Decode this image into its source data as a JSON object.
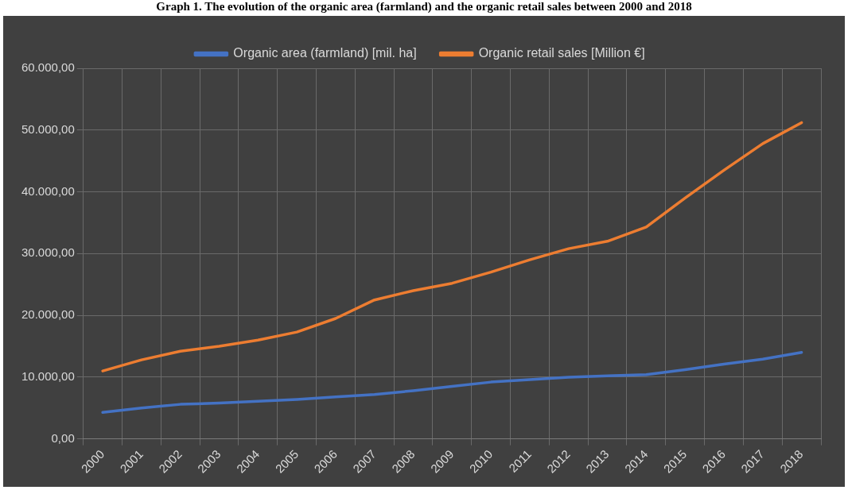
{
  "chart_data": {
    "type": "line",
    "title": "Graph 1. The evolution of the organic area (farmland) and the organic retail sales between 2000 and 2018",
    "categories": [
      "2000",
      "2001",
      "2002",
      "2003",
      "2004",
      "2005",
      "2006",
      "2007",
      "2008",
      "2009",
      "2010",
      "2011",
      "2012",
      "2013",
      "2014",
      "2015",
      "2016",
      "2017",
      "2018"
    ],
    "series": [
      {
        "name": "Organic area (farmland) [mil. ha]",
        "color": "#4472c4",
        "values": [
          4300,
          5000,
          5600,
          5800,
          6100,
          6400,
          6800,
          7200,
          7800,
          8500,
          9200,
          9600,
          10000,
          10200,
          10400,
          11200,
          12100,
          12900,
          14000
        ]
      },
      {
        "name": "Organic retail sales [Million €]",
        "color": "#ed7d31",
        "values": [
          11000,
          12800,
          14200,
          15000,
          16000,
          17300,
          19500,
          22500,
          24000,
          25200,
          27000,
          29000,
          30800,
          32000,
          34300,
          39000,
          43500,
          47800,
          51200
        ]
      }
    ],
    "ylim": [
      0,
      60000
    ],
    "yticks": [
      {
        "value": 0,
        "label": "0,00"
      },
      {
        "value": 10000,
        "label": "10.000,00"
      },
      {
        "value": 20000,
        "label": "20.000,00"
      },
      {
        "value": 30000,
        "label": "30.000,00"
      },
      {
        "value": 40000,
        "label": "40.000,00"
      },
      {
        "value": 50000,
        "label": "50.000,00"
      },
      {
        "value": 60000,
        "label": "60.000,00"
      }
    ],
    "grid": true,
    "legend": "top",
    "marker": "none",
    "line_style": "solid"
  }
}
